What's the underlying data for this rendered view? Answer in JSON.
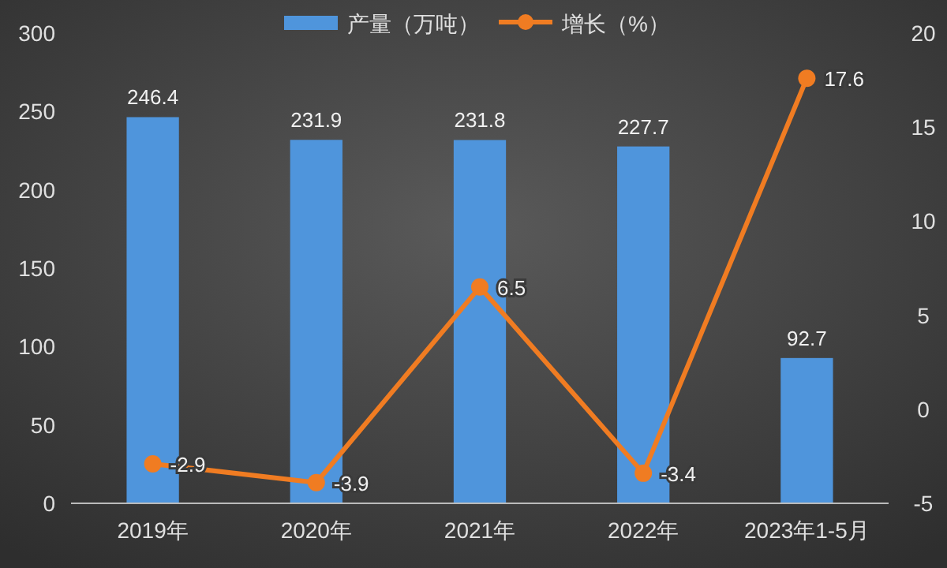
{
  "chart_data": {
    "type": "bar",
    "categories": [
      "2019年",
      "2020年",
      "2021年",
      "2022年",
      "2023年1-5月"
    ],
    "series": [
      {
        "name": "产量（万吨）",
        "color": "#4f95dc",
        "values": [
          246.4,
          231.9,
          231.8,
          227.7,
          92.7
        ]
      },
      {
        "name": "增长（%）",
        "type": "line",
        "axis": "y2",
        "color": "#f07c22",
        "marker": "circle",
        "values": [
          -2.9,
          -3.9,
          6.5,
          -3.4,
          17.6
        ]
      }
    ],
    "ylim": [
      0,
      300
    ],
    "yticks": [
      0,
      50,
      100,
      150,
      200,
      250,
      300
    ],
    "y2lim": [
      -5,
      20
    ],
    "y2ticks": [
      -5,
      0,
      5,
      10,
      15,
      20
    ],
    "data_labels": true,
    "legend": "top",
    "grid": false
  }
}
